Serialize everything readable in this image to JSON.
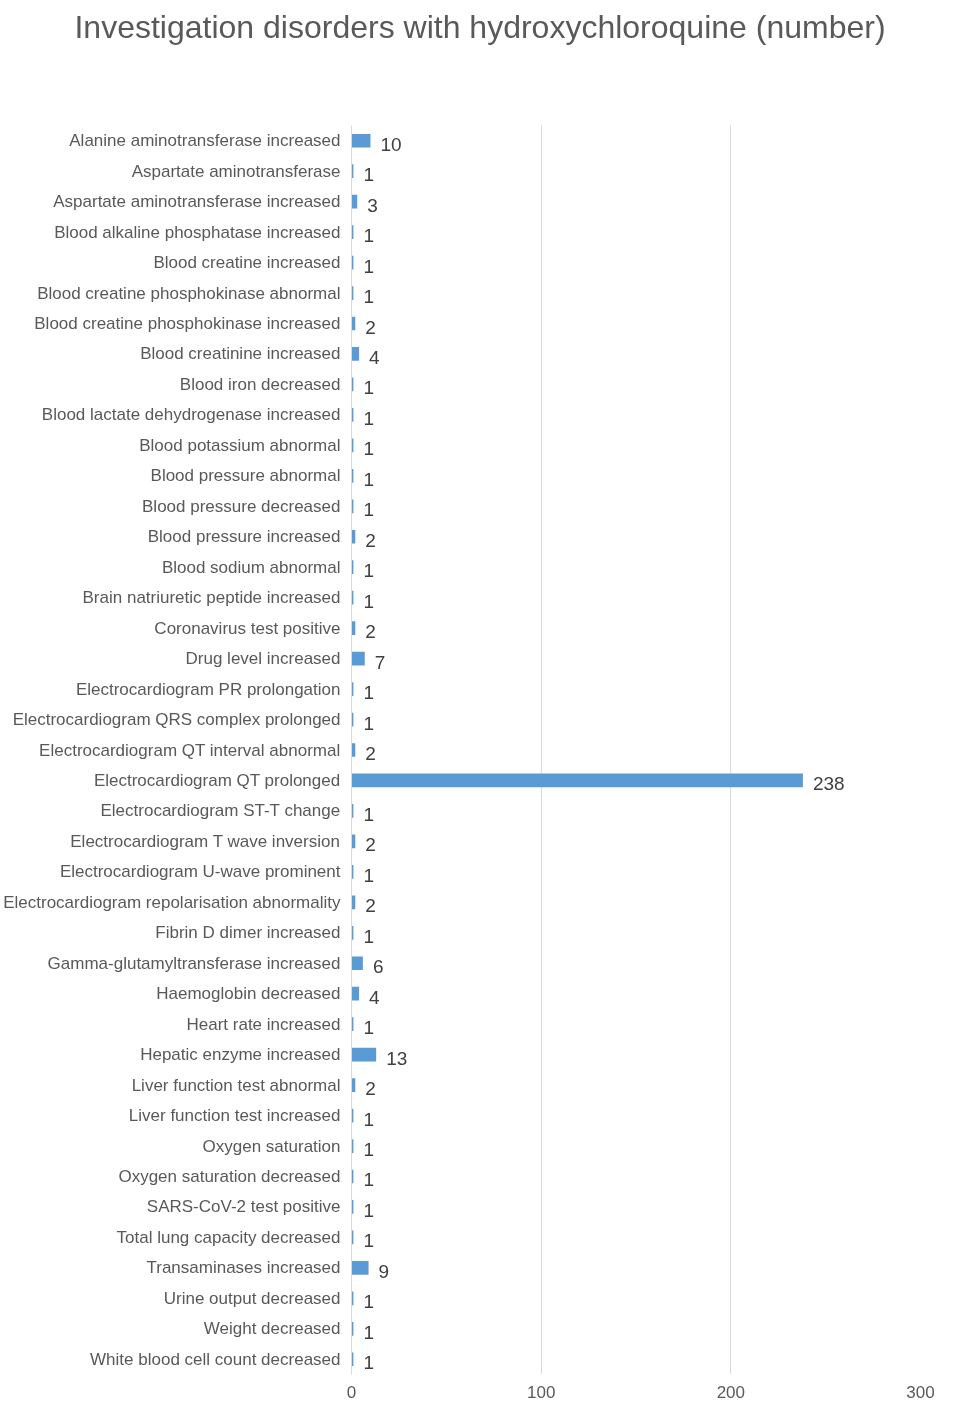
{
  "chart_data": {
    "type": "bar",
    "orientation": "horizontal",
    "title": "Investigation disorders with hydroxychloroquine (number)",
    "categories": [
      "Alanine aminotransferase increased",
      "Aspartate aminotransferase",
      "Aspartate aminotransferase increased",
      "Blood alkaline phosphatase increased",
      "Blood creatine increased",
      "Blood creatine phosphokinase abnormal",
      "Blood creatine phosphokinase increased",
      "Blood creatinine increased",
      "Blood iron decreased",
      "Blood lactate dehydrogenase increased",
      "Blood potassium abnormal",
      "Blood pressure abnormal",
      "Blood pressure decreased",
      "Blood pressure increased",
      "Blood sodium abnormal",
      "Brain natriuretic peptide increased",
      "Coronavirus test positive",
      "Drug level increased",
      "Electrocardiogram PR prolongation",
      "Electrocardiogram QRS complex prolonged",
      "Electrocardiogram QT interval abnormal",
      "Electrocardiogram QT prolonged",
      "Electrocardiogram ST-T change",
      "Electrocardiogram T wave inversion",
      "Electrocardiogram U-wave prominent",
      "Electrocardiogram repolarisation abnormality",
      "Fibrin D dimer increased",
      "Gamma-glutamyltransferase increased",
      "Haemoglobin decreased",
      "Heart rate increased",
      "Hepatic enzyme increased",
      "Liver function test abnormal",
      "Liver function test increased",
      "Oxygen saturation",
      "Oxygen saturation decreased",
      "SARS-CoV-2 test positive",
      "Total lung capacity decreased",
      "Transaminases increased",
      "Urine output decreased",
      "Weight decreased",
      "White blood cell count decreased"
    ],
    "values": [
      10,
      1,
      3,
      1,
      1,
      1,
      2,
      4,
      1,
      1,
      1,
      1,
      1,
      2,
      1,
      1,
      2,
      7,
      1,
      1,
      2,
      238,
      1,
      2,
      1,
      2,
      1,
      6,
      4,
      1,
      13,
      2,
      1,
      1,
      1,
      1,
      1,
      9,
      1,
      1,
      1
    ],
    "color": "#5b9bd5",
    "xlim": [
      0,
      300
    ],
    "xticks": [
      0,
      100,
      200,
      300
    ],
    "grid": "x",
    "data_labels": true
  }
}
